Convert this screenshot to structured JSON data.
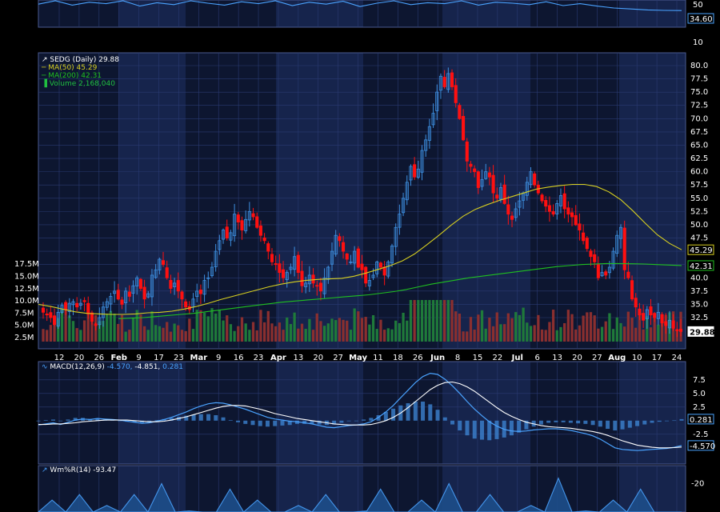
{
  "colors": {
    "background": "#000000",
    "panel_a": "#0d1630",
    "panel_b": "#16244c",
    "grid": "#2a3a72",
    "border": "#4a5a90",
    "axis_text": "#ffffff",
    "up": "#3d8fe0",
    "down": "#ff1010",
    "ma50": "#d8d020",
    "ma200": "#20c020",
    "volume_up": "#1f7a3a",
    "volume_down": "#8a2f2f",
    "macd_line": "#4aa3ff",
    "signal_line": "#ffffff",
    "histogram": "#3c82d0",
    "williams": "#4aa3ff"
  },
  "chart_data": [
    {
      "name": "rsi-strip",
      "type": "line",
      "y_ticks": [
        "50",
        "10"
      ],
      "current_label": "34.60",
      "values": [
        48,
        55,
        46,
        52,
        49,
        58,
        44,
        51,
        47,
        55,
        50,
        46,
        53,
        49,
        57,
        45,
        52,
        48,
        54,
        43,
        50,
        56,
        47,
        51,
        49,
        55,
        46,
        52,
        50,
        47,
        53,
        45,
        49,
        44,
        40,
        38,
        36,
        35,
        34.6
      ]
    },
    {
      "name": "price",
      "type": "candlestick",
      "legend": [
        "SEDG (Daily) 29.88",
        "MA(50) 45.29",
        "MA(200) 42.31",
        "Volume 2,168,040"
      ],
      "y_ticks": [
        "80.0",
        "77.5",
        "75.0",
        "72.5",
        "70.0",
        "67.5",
        "65.0",
        "62.5",
        "60.0",
        "57.5",
        "55.0",
        "52.5",
        "50.0",
        "47.5",
        "45.0",
        "42.5",
        "40.0",
        "37.5",
        "35.0",
        "32.5"
      ],
      "volume_ticks": [
        "17.5M",
        "15.0M",
        "12.5M",
        "10.0M",
        "7.5M",
        "5.0M",
        "2.5M"
      ],
      "x_tick_labels": [
        {
          "text": "12",
          "bold": false
        },
        {
          "text": "20",
          "bold": false
        },
        {
          "text": "26",
          "bold": false
        },
        {
          "text": "Feb",
          "bold": true
        },
        {
          "text": "9",
          "bold": false
        },
        {
          "text": "17",
          "bold": false
        },
        {
          "text": "23",
          "bold": false
        },
        {
          "text": "Mar",
          "bold": true
        },
        {
          "text": "9",
          "bold": false
        },
        {
          "text": "16",
          "bold": false
        },
        {
          "text": "23",
          "bold": false
        },
        {
          "text": "Apr",
          "bold": true
        },
        {
          "text": "13",
          "bold": false
        },
        {
          "text": "20",
          "bold": false
        },
        {
          "text": "27",
          "bold": false
        },
        {
          "text": "May",
          "bold": true
        },
        {
          "text": "11",
          "bold": false
        },
        {
          "text": "18",
          "bold": false
        },
        {
          "text": "26",
          "bold": false
        },
        {
          "text": "Jun",
          "bold": true
        },
        {
          "text": "8",
          "bold": false
        },
        {
          "text": "15",
          "bold": false
        },
        {
          "text": "22",
          "bold": false
        },
        {
          "text": "Jul",
          "bold": true
        },
        {
          "text": "6",
          "bold": false
        },
        {
          "text": "13",
          "bold": false
        },
        {
          "text": "20",
          "bold": false
        },
        {
          "text": "27",
          "bold": false
        },
        {
          "text": "Aug",
          "bold": true
        },
        {
          "text": "10",
          "bold": false
        },
        {
          "text": "17",
          "bold": false
        },
        {
          "text": "24",
          "bold": false
        }
      ],
      "price_labels": {
        "last": "29.88",
        "ma50": "45.29",
        "ma200": "42.31"
      },
      "close_path": [
        33.5,
        33,
        32.5,
        31.2,
        33.5,
        34.8,
        34,
        35.2,
        35.5,
        34.5,
        35.2,
        35.5,
        33.2,
        31.8,
        31,
        32.5,
        34.5,
        35.5,
        36.5,
        37.5,
        36,
        35,
        37.5,
        36.5,
        38.5,
        40,
        38,
        36,
        37,
        40.5,
        41.5,
        43.5,
        42.5,
        40,
        38,
        39,
        37.5,
        36,
        34.5,
        34,
        36,
        37.5,
        37,
        39.5,
        40,
        42,
        45,
        47,
        49,
        47.5,
        48.5,
        52,
        50.5,
        49,
        51,
        52.5,
        51.5,
        49.5,
        48,
        47,
        45,
        43,
        42.5,
        41,
        40,
        41,
        42,
        44,
        41,
        38.5,
        39,
        40.5,
        39,
        38.5,
        37.5,
        40,
        42,
        45,
        48,
        47,
        45,
        43.5,
        43,
        45,
        42,
        41.5,
        39,
        39.5,
        40.5,
        43,
        42,
        40.5,
        43,
        46,
        49.5,
        52,
        55,
        58,
        61,
        59,
        60.5,
        64,
        66,
        68.5,
        71,
        75,
        78,
        76,
        78.5,
        76,
        73,
        70,
        66,
        62,
        61,
        60,
        57,
        58.5,
        60,
        59,
        56,
        55,
        57,
        54,
        52,
        51,
        53,
        54.5,
        56,
        58,
        60,
        57.5,
        56,
        54.5,
        53.5,
        52.5,
        52,
        54,
        55.5,
        53,
        52,
        51.5,
        50,
        49,
        47,
        45.5,
        44,
        43,
        40,
        41,
        40.5,
        42,
        45,
        48,
        49.5,
        41.5,
        40,
        36,
        34.5,
        33,
        32,
        34,
        33,
        32.5,
        33.5,
        31.5,
        31,
        32,
        30.5,
        30,
        29.88
      ],
      "ma50": [
        35,
        34.6,
        34.1,
        33.6,
        33.3,
        33.2,
        33.1,
        33.1,
        33.2,
        33.4,
        33.5,
        33.7,
        34.1,
        34.6,
        35.2,
        35.9,
        36.5,
        37.1,
        37.7,
        38.3,
        38.8,
        39.2,
        39.5,
        39.7,
        39.8,
        39.9,
        40.3,
        40.9,
        41.6,
        42.3,
        43.2,
        44.5,
        46.2,
        48,
        49.9,
        51.6,
        52.9,
        53.8,
        54.6,
        55.3,
        56,
        56.7,
        57.1,
        57.4,
        57.6,
        57.6,
        57.2,
        56.2,
        54.7,
        52.6,
        50.3,
        48.1,
        46.5,
        45.29
      ],
      "ma200": [
        32.3,
        32.4,
        32.5,
        32.7,
        32.9,
        33.1,
        33.3,
        33.6,
        33.9,
        34.2,
        34.5,
        34.8,
        35.1,
        35.4,
        35.6,
        35.8,
        36,
        36.2,
        36.4,
        36.6,
        36.8,
        37.1,
        37.4,
        37.8,
        38.3,
        38.8,
        39.2,
        39.6,
        40,
        40.3,
        40.6,
        40.9,
        41.2,
        41.5,
        41.8,
        42.1,
        42.3,
        42.5,
        42.6,
        42.7,
        42.7,
        42.65,
        42.6,
        42.5,
        42.4,
        42.31
      ]
    },
    {
      "name": "macd",
      "type": "line",
      "legend": [
        "MACD(12,26,9)",
        "-4.570,",
        "-4.851,",
        "0.281"
      ],
      "y_ticks": [
        "7.5",
        "5.0",
        "2.5",
        "-2.5"
      ],
      "value_labels": {
        "histogram": "0.281",
        "macd": "-4.570"
      },
      "macd": [
        -0.8,
        -0.6,
        -0.4,
        -0.7,
        -0.3,
        0.1,
        0.3,
        0.2,
        0.4,
        0.3,
        0.2,
        0.1,
        -0.1,
        -0.3,
        -0.5,
        -0.4,
        -0.1,
        0.2,
        0.6,
        1.1,
        1.6,
        2.2,
        2.7,
        3.1,
        3.3,
        3.2,
        2.9,
        2.5,
        2.1,
        1.6,
        1.1,
        0.6,
        0.3,
        0.1,
        -0.1,
        -0.2,
        -0.4,
        -0.6,
        -0.9,
        -1.2,
        -1.3,
        -1.1,
        -0.9,
        -0.8,
        -0.6,
        -0.2,
        0.6,
        1.6,
        2.8,
        4.2,
        5.6,
        7,
        8.1,
        8.7,
        8.5,
        7.6,
        6.4,
        5,
        3.5,
        2.1,
        0.9,
        -0.2,
        -1,
        -1.6,
        -1.9,
        -2,
        -1.9,
        -1.7,
        -1.6,
        -1.5,
        -1.5,
        -1.6,
        -1.8,
        -2.1,
        -2.4,
        -2.8,
        -3.4,
        -4.2,
        -5,
        -5.3,
        -5.4,
        -5.5,
        -5.4,
        -5.3,
        -5.2,
        -5.1,
        -4.9,
        -4.57
      ],
      "signal": [
        -0.7,
        -0.7,
        -0.6,
        -0.6,
        -0.5,
        -0.4,
        -0.2,
        -0.1,
        0,
        0.1,
        0.1,
        0.1,
        0.1,
        0,
        -0.1,
        -0.2,
        -0.2,
        -0.1,
        0.1,
        0.4,
        0.7,
        1.1,
        1.5,
        1.9,
        2.3,
        2.6,
        2.8,
        2.8,
        2.7,
        2.4,
        2.1,
        1.7,
        1.3,
        1,
        0.7,
        0.4,
        0.2,
        0,
        -0.2,
        -0.4,
        -0.6,
        -0.7,
        -0.8,
        -0.8,
        -0.8,
        -0.7,
        -0.4,
        0,
        0.6,
        1.4,
        2.4,
        3.5,
        4.6,
        5.7,
        6.5,
        7,
        7.1,
        6.8,
        6.2,
        5.4,
        4.4,
        3.4,
        2.4,
        1.5,
        0.8,
        0.2,
        -0.3,
        -0.6,
        -0.9,
        -1.1,
        -1.2,
        -1.3,
        -1.4,
        -1.6,
        -1.8,
        -2,
        -2.3,
        -2.7,
        -3.2,
        -3.7,
        -4.1,
        -4.5,
        -4.7,
        -4.9,
        -5,
        -5,
        -4.95,
        -4.85
      ]
    },
    {
      "name": "williams-r",
      "type": "area",
      "legend": [
        "Wm%R(14)",
        "-93.47"
      ],
      "y_ticks": [
        "-20"
      ],
      "values": [
        -60,
        -35,
        -70,
        -30,
        -80,
        -40,
        -90,
        -30,
        -65,
        -20,
        -75,
        -45,
        -95,
        -55,
        -25,
        -85,
        -35,
        -60,
        -90,
        -40,
        -75,
        -30,
        -50,
        -88,
        -45,
        -25,
        -70,
        -95,
        -35,
        -65,
        -20,
        -80,
        -55,
        -30,
        -90,
        -60,
        -40,
        -85,
        -15,
        -70,
        -45,
        -92,
        -35,
        -60,
        -25,
        -80,
        -50,
        -93.47
      ]
    }
  ]
}
